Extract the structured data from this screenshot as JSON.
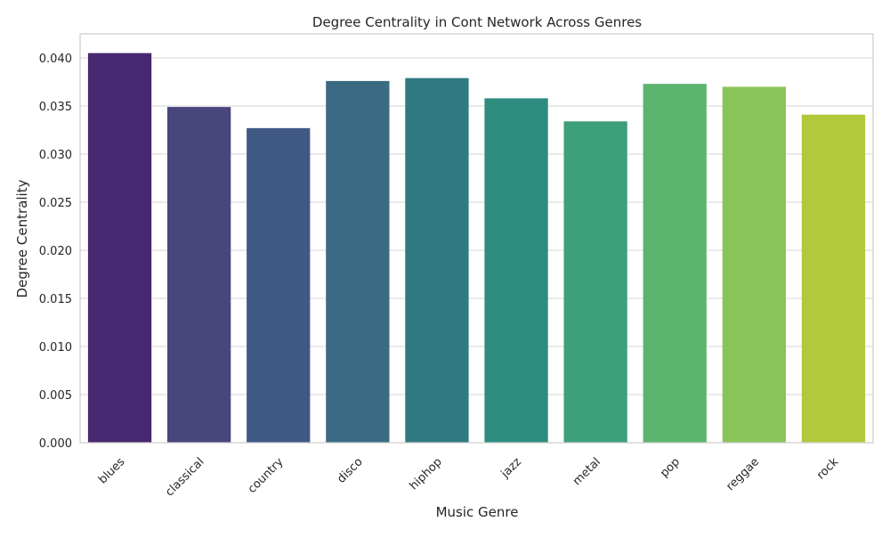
{
  "chart_data": {
    "type": "bar",
    "title": "Degree Centrality in Cont Network Across Genres",
    "xlabel": "Music Genre",
    "ylabel": "Degree Centrality",
    "categories": [
      "blues",
      "classical",
      "country",
      "disco",
      "hiphop",
      "jazz",
      "metal",
      "pop",
      "reggae",
      "rock"
    ],
    "values": [
      0.0405,
      0.0349,
      0.0327,
      0.0376,
      0.0379,
      0.0358,
      0.0334,
      0.0373,
      0.037,
      0.0341
    ],
    "colors": [
      "#482870",
      "#48467c",
      "#405984",
      "#3b6b82",
      "#2f7a80",
      "#2e8c7f",
      "#3da07b",
      "#5cb56f",
      "#89c45a",
      "#b1c93a"
    ],
    "ylim": [
      0,
      0.0425
    ],
    "yticks": [
      "0.000",
      "0.005",
      "0.010",
      "0.015",
      "0.020",
      "0.025",
      "0.030",
      "0.035",
      "0.040"
    ],
    "grid": true,
    "xtick_rotation": 45
  }
}
